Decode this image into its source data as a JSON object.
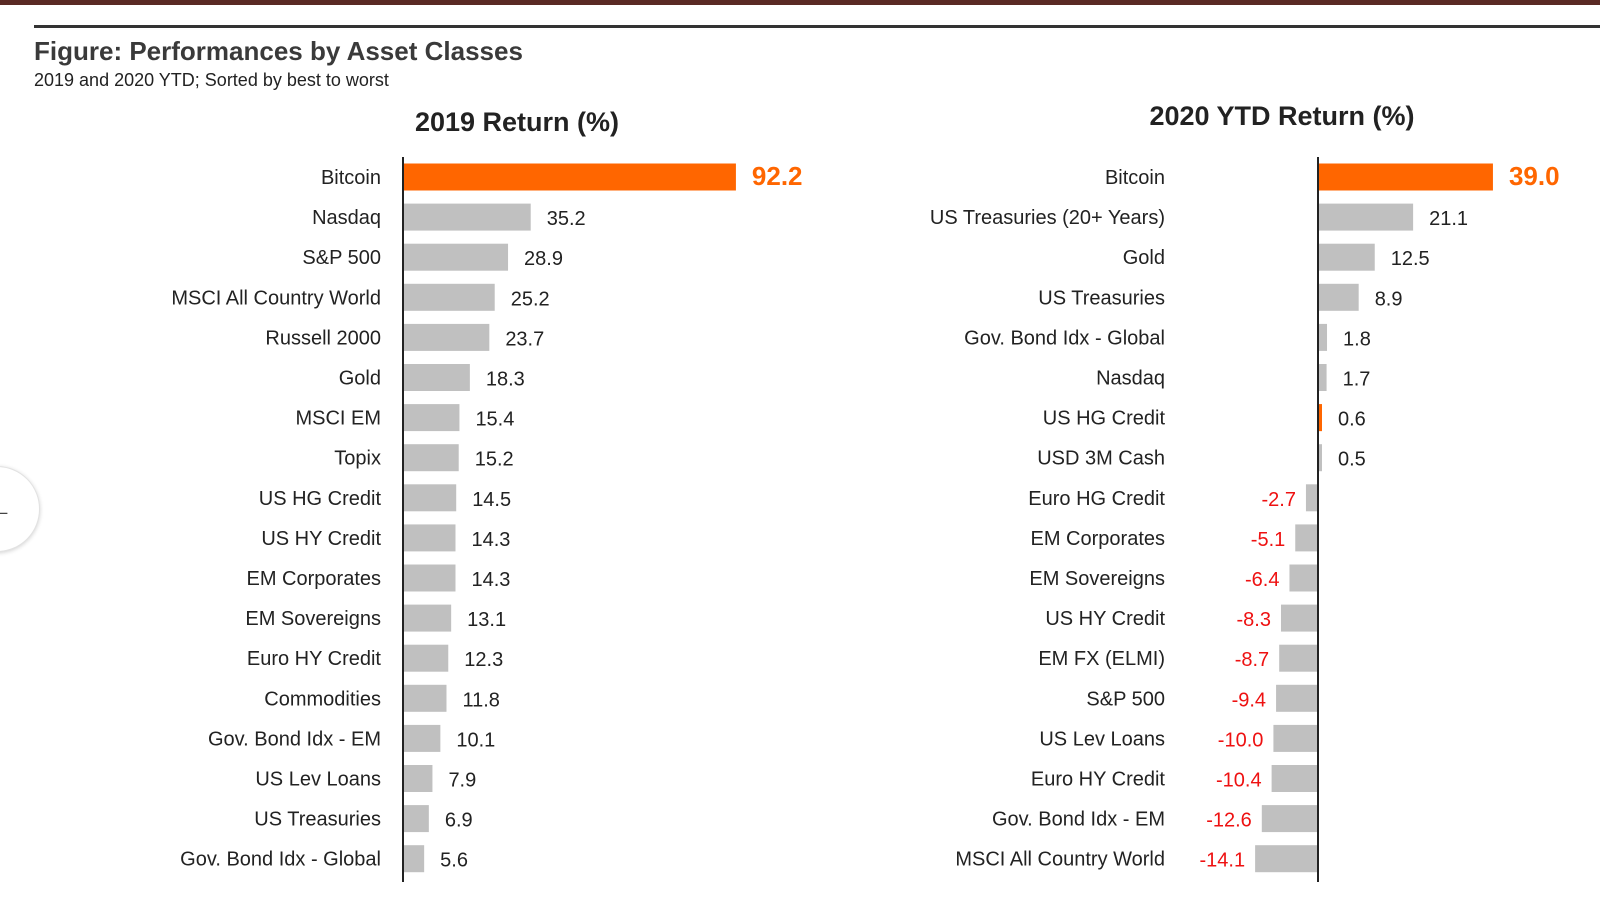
{
  "figure": {
    "title": "Figure: Performances by Asset Classes",
    "subtitle": "2019 and 2020 YTD; Sorted by best to worst"
  },
  "side_tab": {
    "icon": "arrow-left-icon",
    "glyph": "←"
  },
  "colors": {
    "highlight": "#ff6600",
    "bar": "#c0c0c0",
    "axis": "#222222",
    "negative_label": "#ee1111",
    "label": "#222222"
  },
  "chart_data": [
    {
      "type": "bar",
      "orientation": "horizontal",
      "title": "2019 Return (%)",
      "categories": [
        "Bitcoin",
        "Nasdaq",
        "S&P 500",
        "MSCI All Country World",
        "Russell 2000",
        "Gold",
        "MSCI EM",
        "Topix",
        "US HG Credit",
        "US HY Credit",
        "EM Corporates",
        "EM Sovereigns",
        "Euro HY Credit",
        "Commodities",
        "Gov. Bond Idx - EM",
        "US Lev Loans",
        "US Treasuries",
        "Gov. Bond Idx - Global"
      ],
      "values": [
        92.2,
        35.2,
        28.9,
        25.2,
        23.7,
        18.3,
        15.4,
        15.2,
        14.5,
        14.3,
        14.3,
        13.1,
        12.3,
        11.8,
        10.1,
        7.9,
        6.9,
        5.6
      ],
      "value_labels": [
        "92.2",
        "35.2",
        "28.9",
        "25.2",
        "23.7",
        "18.3",
        "15.4",
        "15.2",
        "14.5",
        "14.3",
        "14.3",
        "13.1",
        "12.3",
        "11.8",
        "10.1",
        "7.9",
        "6.9",
        "5.6"
      ],
      "highlight": [
        "Bitcoin"
      ],
      "grid": false,
      "xlim": [
        0,
        100
      ]
    },
    {
      "type": "bar",
      "orientation": "horizontal",
      "title": "2020 YTD Return (%)",
      "categories": [
        "Bitcoin",
        "US Treasuries (20+ Years)",
        "Gold",
        "US Treasuries",
        "Gov. Bond Idx - Global",
        "Nasdaq",
        "US HG Credit",
        "USD 3M Cash",
        "Euro HG Credit",
        "EM Corporates",
        "EM Sovereigns",
        "US HY Credit",
        "EM FX (ELMI)",
        "S&P 500",
        "US Lev Loans",
        "Euro HY Credit",
        "Gov. Bond Idx - EM",
        "MSCI All Country World"
      ],
      "values": [
        39.0,
        21.1,
        12.5,
        8.9,
        1.8,
        1.7,
        0.6,
        0.5,
        -2.7,
        -5.1,
        -6.4,
        -8.3,
        -8.7,
        -9.4,
        -10.0,
        -10.4,
        -12.6,
        -14.1
      ],
      "value_labels": [
        "39.0",
        "21.1",
        "12.5",
        "8.9",
        "1.8",
        "1.7",
        "0.6",
        "0.5",
        "-2.7",
        "-5.1",
        "-6.4",
        "-8.3",
        "-8.7",
        "-9.4",
        "-10.0",
        "-10.4",
        "-12.6",
        "-14.1"
      ],
      "highlight": [
        "Bitcoin",
        "US HG Credit"
      ],
      "grid": false,
      "xlim": [
        -20,
        45
      ]
    }
  ]
}
